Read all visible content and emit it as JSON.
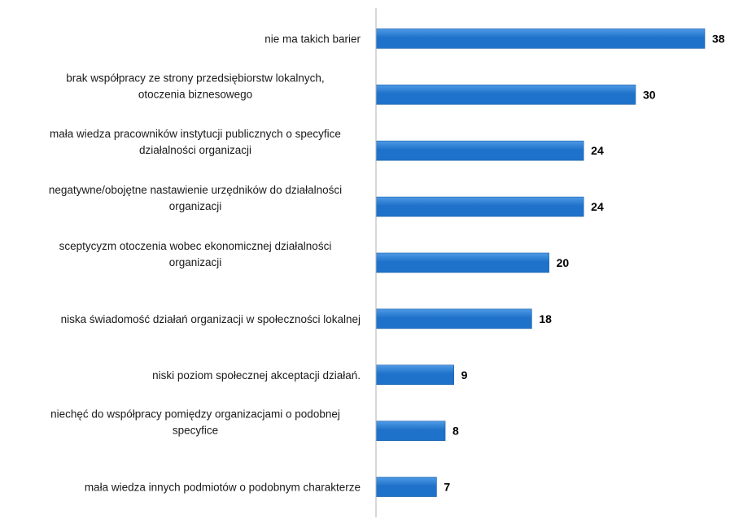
{
  "chart_data": {
    "type": "bar",
    "orientation": "horizontal",
    "categories": [
      [
        "nie ma takich barier"
      ],
      [
        "brak współpracy ze strony przedsiębiorstw lokalnych,",
        "otoczenia biznesowego"
      ],
      [
        "mała wiedza pracowników instytucji publicznych o specyfice",
        "działalności organizacji"
      ],
      [
        "negatywne/obojętne nastawienie urzędników do działalności",
        "organizacji"
      ],
      [
        "sceptycyzm otoczenia wobec ekonomicznej działalności",
        "organizacji"
      ],
      [
        "niska świadomość działań organizacji w społeczności lokalnej"
      ],
      [
        "niski poziom społecznej akceptacji działań."
      ],
      [
        "niechęć do współpracy pomiędzy organizacjami o podobnej",
        "specyfice"
      ],
      [
        "mała wiedza innych podmiotów o podobnym charakterze"
      ]
    ],
    "values": [
      38,
      30,
      24,
      24,
      20,
      18,
      9,
      8,
      7
    ],
    "title": "",
    "xlabel": "",
    "ylabel": "",
    "xlim": [
      0,
      38
    ],
    "grid": false,
    "legend": "none",
    "bar_color": "#1f72c9",
    "bar_color_light": "#4f9ae6",
    "axis_color": "#b0b0b0"
  }
}
